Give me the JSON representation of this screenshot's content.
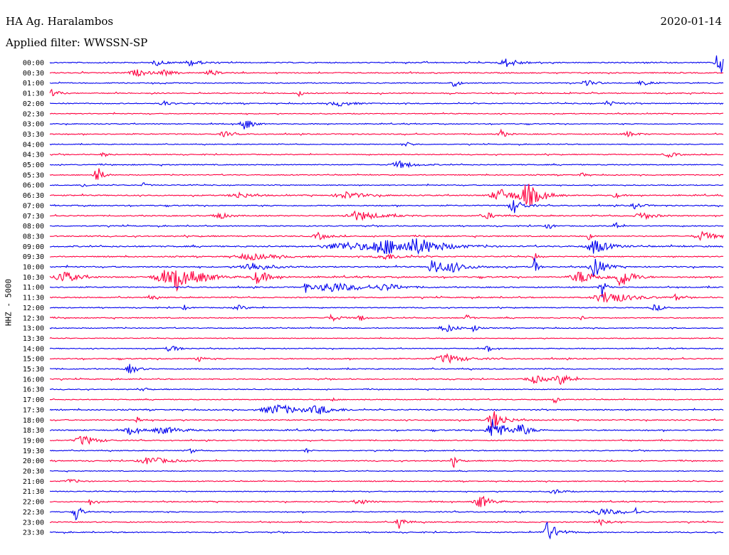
{
  "header": {
    "station": "HA Ag. Haralambos",
    "date": "2020-01-14",
    "filter": "Applied filter: WWSSN-SP"
  },
  "chart_data": {
    "type": "line",
    "title": "HA Ag. Haralambos",
    "subtitle": "Applied filter: WWSSN-SP",
    "date": "2020-01-14",
    "ylabel": "HHZ - 5000",
    "xlabel": "",
    "x_range_minutes": [
      0,
      30
    ],
    "grid": false,
    "legend": "none",
    "row_colors": [
      "#0000ee",
      "#ff0040"
    ],
    "rows": [
      {
        "label": "00:00",
        "noise": 1.0,
        "events": [
          [
            0.16,
            0.5,
            0.01
          ],
          [
            0.21,
            0.6,
            0.012
          ],
          [
            0.68,
            0.8,
            0.015
          ],
          [
            0.995,
            3.0,
            0.008
          ]
        ]
      },
      {
        "label": "00:30",
        "noise": 1.0,
        "events": [
          [
            0.13,
            0.6,
            0.015
          ],
          [
            0.17,
            0.5,
            0.01
          ],
          [
            0.24,
            0.5,
            0.01
          ]
        ]
      },
      {
        "label": "01:00",
        "noise": 0.9,
        "events": [
          [
            0.6,
            0.8,
            0.006
          ],
          [
            0.8,
            0.5,
            0.01
          ],
          [
            0.88,
            0.5,
            0.008
          ]
        ]
      },
      {
        "label": "01:30",
        "noise": 0.9,
        "events": [
          [
            0.005,
            1.0,
            0.006
          ],
          [
            0.37,
            0.6,
            0.004
          ]
        ]
      },
      {
        "label": "02:00",
        "noise": 0.9,
        "events": [
          [
            0.17,
            0.5,
            0.008
          ],
          [
            0.43,
            0.5,
            0.015
          ],
          [
            0.83,
            0.5,
            0.01
          ]
        ]
      },
      {
        "label": "02:30",
        "noise": 0.8,
        "events": []
      },
      {
        "label": "03:00",
        "noise": 0.8,
        "events": [
          [
            0.29,
            1.4,
            0.008
          ]
        ]
      },
      {
        "label": "03:30",
        "noise": 0.9,
        "events": [
          [
            0.26,
            0.5,
            0.01
          ],
          [
            0.67,
            0.9,
            0.006
          ],
          [
            0.86,
            0.5,
            0.01
          ]
        ]
      },
      {
        "label": "04:00",
        "noise": 0.7,
        "events": [
          [
            0.53,
            0.4,
            0.008
          ]
        ]
      },
      {
        "label": "04:30",
        "noise": 0.8,
        "events": [
          [
            0.08,
            0.5,
            0.005
          ],
          [
            0.92,
            0.5,
            0.01
          ]
        ]
      },
      {
        "label": "05:00",
        "noise": 0.9,
        "events": [
          [
            0.52,
            0.7,
            0.015
          ]
        ]
      },
      {
        "label": "05:30",
        "noise": 0.8,
        "events": [
          [
            0.07,
            2.0,
            0.006
          ],
          [
            0.79,
            0.5,
            0.004
          ]
        ]
      },
      {
        "label": "06:00",
        "noise": 0.8,
        "events": [
          [
            0.05,
            0.5,
            0.005
          ],
          [
            0.14,
            0.5,
            0.004
          ]
        ]
      },
      {
        "label": "06:30",
        "noise": 1.0,
        "events": [
          [
            0.28,
            0.6,
            0.015
          ],
          [
            0.44,
            0.7,
            0.02
          ],
          [
            0.67,
            1.2,
            0.02
          ],
          [
            0.71,
            2.3,
            0.015
          ],
          [
            0.84,
            0.6,
            0.005
          ]
        ]
      },
      {
        "label": "07:00",
        "noise": 1.0,
        "events": [
          [
            0.69,
            1.4,
            0.01
          ],
          [
            0.87,
            0.6,
            0.008
          ]
        ]
      },
      {
        "label": "07:30",
        "noise": 1.0,
        "events": [
          [
            0.25,
            0.8,
            0.01
          ],
          [
            0.46,
            0.9,
            0.025
          ],
          [
            0.65,
            0.6,
            0.01
          ],
          [
            0.88,
            0.8,
            0.012
          ]
        ]
      },
      {
        "label": "08:00",
        "noise": 0.9,
        "events": [
          [
            0.74,
            1.0,
            0.004
          ],
          [
            0.84,
            1.0,
            0.004
          ]
        ]
      },
      {
        "label": "08:30",
        "noise": 1.0,
        "events": [
          [
            0.4,
            0.7,
            0.01
          ],
          [
            0.8,
            0.9,
            0.003
          ],
          [
            0.97,
            0.9,
            0.015
          ]
        ]
      },
      {
        "label": "09:00",
        "noise": 1.2,
        "events": [
          [
            0.44,
            0.8,
            0.04
          ],
          [
            0.5,
            1.4,
            0.03
          ],
          [
            0.55,
            1.2,
            0.03
          ],
          [
            0.81,
            1.5,
            0.015
          ]
        ]
      },
      {
        "label": "09:30",
        "noise": 1.0,
        "events": [
          [
            0.3,
            0.6,
            0.03
          ],
          [
            0.5,
            0.6,
            0.02
          ],
          [
            0.72,
            1.8,
            0.002
          ]
        ]
      },
      {
        "label": "10:00",
        "noise": 1.1,
        "events": [
          [
            0.3,
            0.9,
            0.02
          ],
          [
            0.57,
            1.8,
            0.01
          ],
          [
            0.6,
            0.8,
            0.02
          ],
          [
            0.72,
            2.2,
            0.003
          ],
          [
            0.81,
            2.2,
            0.01
          ]
        ]
      },
      {
        "label": "10:30",
        "noise": 1.2,
        "events": [
          [
            0.02,
            1.3,
            0.015
          ],
          [
            0.17,
            1.3,
            0.02
          ],
          [
            0.19,
            2.2,
            0.008
          ],
          [
            0.22,
            1.0,
            0.02
          ],
          [
            0.31,
            1.4,
            0.012
          ],
          [
            0.79,
            1.2,
            0.02
          ],
          [
            0.85,
            2.0,
            0.012
          ]
        ]
      },
      {
        "label": "11:00",
        "noise": 1.0,
        "events": [
          [
            0.38,
            1.4,
            0.004
          ],
          [
            0.42,
            1.0,
            0.03
          ],
          [
            0.5,
            0.6,
            0.02
          ],
          [
            0.82,
            2.0,
            0.005
          ]
        ]
      },
      {
        "label": "11:30",
        "noise": 1.0,
        "events": [
          [
            0.15,
            0.6,
            0.005
          ],
          [
            0.83,
            1.3,
            0.025
          ],
          [
            0.93,
            0.6,
            0.005
          ]
        ]
      },
      {
        "label": "12:00",
        "noise": 0.8,
        "events": [
          [
            0.2,
            0.5,
            0.004
          ],
          [
            0.28,
            0.5,
            0.01
          ],
          [
            0.9,
            0.6,
            0.01
          ]
        ]
      },
      {
        "label": "12:30",
        "noise": 0.9,
        "events": [
          [
            0.42,
            0.6,
            0.01
          ],
          [
            0.46,
            0.8,
            0.005
          ],
          [
            0.62,
            0.8,
            0.004
          ],
          [
            0.79,
            0.5,
            0.004
          ]
        ]
      },
      {
        "label": "13:00",
        "noise": 0.8,
        "events": [
          [
            0.59,
            0.8,
            0.012
          ],
          [
            0.63,
            0.8,
            0.004
          ]
        ]
      },
      {
        "label": "13:30",
        "noise": 0.7,
        "events": []
      },
      {
        "label": "14:00",
        "noise": 0.8,
        "events": [
          [
            0.18,
            0.8,
            0.008
          ],
          [
            0.65,
            0.8,
            0.004
          ]
        ]
      },
      {
        "label": "15:00",
        "noise": 1.0,
        "events": [
          [
            0.22,
            0.8,
            0.005
          ],
          [
            0.59,
            0.9,
            0.02
          ]
        ]
      },
      {
        "label": "15:30",
        "noise": 0.9,
        "events": [
          [
            0.12,
            1.0,
            0.008
          ]
        ]
      },
      {
        "label": "16:00",
        "noise": 0.9,
        "events": [
          [
            0.72,
            0.8,
            0.015
          ],
          [
            0.76,
            1.0,
            0.012
          ]
        ]
      },
      {
        "label": "16:30",
        "noise": 0.8,
        "events": [
          [
            0.14,
            0.8,
            0.003
          ]
        ]
      },
      {
        "label": "17:00",
        "noise": 0.8,
        "events": [
          [
            0.42,
            0.5,
            0.003
          ],
          [
            0.75,
            1.0,
            0.003
          ]
        ]
      },
      {
        "label": "17:30",
        "noise": 1.0,
        "events": [
          [
            0.34,
            1.0,
            0.03
          ],
          [
            0.4,
            0.8,
            0.015
          ]
        ]
      },
      {
        "label": "18:00",
        "noise": 1.0,
        "events": [
          [
            0.13,
            0.8,
            0.004
          ],
          [
            0.66,
            2.0,
            0.012
          ]
        ]
      },
      {
        "label": "18:30",
        "noise": 1.1,
        "events": [
          [
            0.12,
            0.8,
            0.01
          ],
          [
            0.17,
            0.7,
            0.02
          ],
          [
            0.66,
            2.6,
            0.012
          ],
          [
            0.7,
            1.2,
            0.01
          ]
        ]
      },
      {
        "label": "19:00",
        "noise": 0.9,
        "events": [
          [
            0.05,
            1.0,
            0.015
          ]
        ]
      },
      {
        "label": "19:30",
        "noise": 0.8,
        "events": [
          [
            0.21,
            0.6,
            0.004
          ],
          [
            0.38,
            0.5,
            0.004
          ]
        ]
      },
      {
        "label": "20:00",
        "noise": 0.9,
        "events": [
          [
            0.15,
            0.8,
            0.02
          ],
          [
            0.6,
            1.2,
            0.005
          ]
        ]
      },
      {
        "label": "20:30",
        "noise": 0.7,
        "events": []
      },
      {
        "label": "21:00",
        "noise": 0.8,
        "events": [
          [
            0.03,
            0.4,
            0.01
          ]
        ]
      },
      {
        "label": "21:30",
        "noise": 0.8,
        "events": [
          [
            0.75,
            0.5,
            0.01
          ]
        ]
      },
      {
        "label": "22:00",
        "noise": 0.9,
        "events": [
          [
            0.06,
            0.7,
            0.005
          ],
          [
            0.46,
            0.6,
            0.01
          ],
          [
            0.64,
            1.3,
            0.012
          ]
        ]
      },
      {
        "label": "22:30",
        "noise": 0.9,
        "events": [
          [
            0.04,
            2.0,
            0.005
          ],
          [
            0.82,
            0.7,
            0.02
          ],
          [
            0.87,
            0.6,
            0.005
          ]
        ]
      },
      {
        "label": "23:00",
        "noise": 0.9,
        "events": [
          [
            0.52,
            1.5,
            0.006
          ],
          [
            0.82,
            0.6,
            0.01
          ]
        ]
      },
      {
        "label": "23:30",
        "noise": 0.9,
        "events": [
          [
            0.74,
            2.0,
            0.012
          ]
        ]
      }
    ]
  }
}
